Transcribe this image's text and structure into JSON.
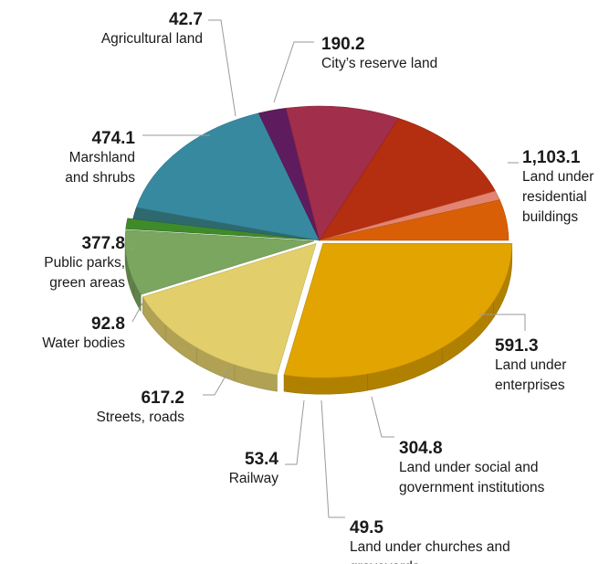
{
  "chart_data": {
    "type": "pie",
    "title": "",
    "slices": [
      {
        "value": 1103.1,
        "value_label": "1,103.1",
        "label": [
          "Land under",
          "residential",
          "buildings"
        ],
        "color": "#E2A400"
      },
      {
        "value": 591.3,
        "value_label": "591.3",
        "label": [
          "Land under",
          "enterprises"
        ],
        "color": "#E2CF6C"
      },
      {
        "value": 304.8,
        "value_label": "304.8",
        "label": [
          "Land under social and",
          "government institutions"
        ],
        "color": "#7BA65F"
      },
      {
        "value": 49.5,
        "value_label": "49.5",
        "label": [
          "Land under churches and",
          "graveyards"
        ],
        "color": "#3F8B2A"
      },
      {
        "value": 53.4,
        "value_label": "53.4",
        "label": [
          "Railway"
        ],
        "color": "#2E6A6D"
      },
      {
        "value": 617.2,
        "value_label": "617.2",
        "label": [
          "Streets, roads"
        ],
        "color": "#3789A0"
      },
      {
        "value": 92.8,
        "value_label": "92.8",
        "label": [
          "Water bodies"
        ],
        "color": "#5E1C5F"
      },
      {
        "value": 377.8,
        "value_label": "377.8",
        "label": [
          "Public parks,",
          "green areas"
        ],
        "color": "#A12E4A"
      },
      {
        "value": 474.1,
        "value_label": "474.1",
        "label": [
          "Marshland",
          "and shrubs"
        ],
        "color": "#B42E10"
      },
      {
        "value": 42.7,
        "value_label": "42.7",
        "label": [
          "Agricultural land"
        ],
        "color": "#E38470"
      },
      {
        "value": 190.2,
        "value_label": "190.2",
        "label": [
          "City’s reserve land"
        ],
        "color": "#D95F06"
      }
    ],
    "pulled_slices": [
      0,
      1,
      2,
      3
    ]
  }
}
